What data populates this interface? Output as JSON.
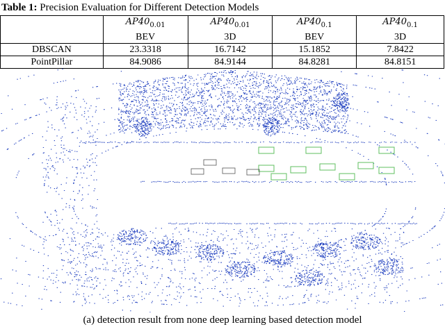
{
  "table": {
    "label": "Table 1:",
    "title": "Precision Evaluation for Different Detection Models",
    "header": [
      {
        "metric": "AP40",
        "sub": "0.01",
        "view": "BEV"
      },
      {
        "metric": "AP40",
        "sub": "0.01",
        "view": "3D"
      },
      {
        "metric": "AP40",
        "sub": "0.1",
        "view": "BEV"
      },
      {
        "metric": "AP40",
        "sub": "0.1",
        "view": "3D"
      }
    ],
    "rows": [
      [
        "DBSCAN",
        "23.3318",
        "16.7142",
        "15.1852",
        "7.8422"
      ],
      [
        "PointPillar",
        "84.9086",
        "84.9144",
        "84.8281",
        "84.8151"
      ]
    ]
  },
  "figure": {
    "caption": "(a) detection result from none deep learning based detection model"
  }
}
